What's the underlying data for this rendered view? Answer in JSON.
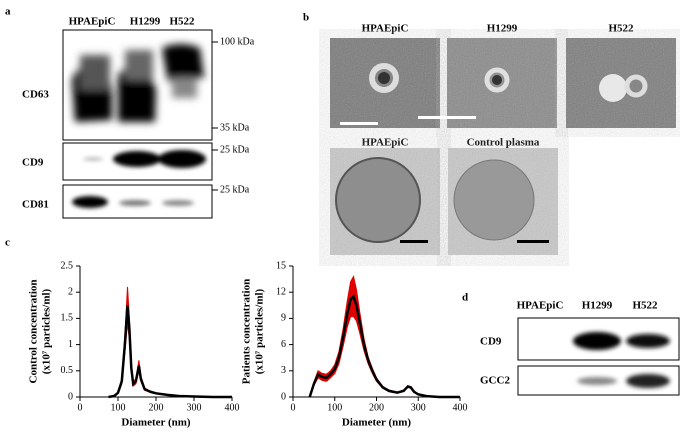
{
  "panel_a": {
    "label": "a",
    "lanes": [
      "HPAEpiC",
      "H1299",
      "H522"
    ],
    "blots": [
      {
        "name": "CD63",
        "markers": [
          "100 kDa",
          "35 kDa"
        ]
      },
      {
        "name": "CD9",
        "markers": [
          "25 kDa"
        ]
      },
      {
        "name": "CD81",
        "markers": [
          "25 kDa"
        ]
      }
    ]
  },
  "panel_b": {
    "label": "b",
    "images": [
      "HPAEpiC",
      "H1299",
      "H522",
      "HPAEpiC",
      "Control plasma"
    ]
  },
  "panel_c": {
    "label": "c"
  },
  "chart_data": [
    {
      "type": "line",
      "ylabel": [
        "Control concentration",
        "(x10⁷ particles/ml)"
      ],
      "xlabel": "Diameter (nm)",
      "xlim": [
        0,
        400
      ],
      "xticks": [
        0,
        100,
        200,
        300,
        400
      ],
      "ylim": [
        0,
        2.5
      ],
      "yticks": [
        0,
        0.5,
        1,
        1.5,
        2,
        2.5
      ],
      "x": [
        75,
        90,
        100,
        110,
        118,
        125,
        130,
        135,
        140,
        147,
        155,
        160,
        170,
        185,
        200,
        230,
        260,
        300,
        350,
        400
      ],
      "series": [
        {
          "color": "#000000",
          "band_color": "#e00000",
          "values": [
            0,
            0.02,
            0.08,
            0.3,
            1.0,
            1.75,
            1.3,
            0.55,
            0.25,
            0.3,
            0.6,
            0.35,
            0.15,
            0.1,
            0.07,
            0.04,
            0.02,
            0.01,
            0,
            0
          ],
          "error": [
            0,
            0,
            0.01,
            0.05,
            0.15,
            0.35,
            0.2,
            0.08,
            0.04,
            0.05,
            0.1,
            0.05,
            0.02,
            0.01,
            0.01,
            0,
            0,
            0,
            0,
            0
          ]
        }
      ]
    },
    {
      "type": "line",
      "ylabel": [
        "Patients concentration",
        "(x10⁷ particles/ml)"
      ],
      "xlabel": "Diameter (nm)",
      "xlim": [
        0,
        400
      ],
      "xticks": [
        0,
        100,
        200,
        300,
        400
      ],
      "ylim": [
        0,
        15
      ],
      "yticks": [
        0,
        3,
        6,
        9,
        12,
        15
      ],
      "x": [
        40,
        50,
        60,
        70,
        80,
        90,
        100,
        110,
        120,
        130,
        138,
        145,
        152,
        160,
        170,
        180,
        190,
        200,
        215,
        230,
        250,
        265,
        275,
        282,
        290,
        300,
        320,
        350,
        400
      ],
      "series": [
        {
          "color": "#000000",
          "band_color": "#e00000",
          "values": [
            0,
            1.5,
            2.6,
            2.3,
            2.2,
            2.6,
            3.2,
            4.5,
            6.8,
            9.5,
            11.2,
            11.5,
            10.5,
            8.5,
            6,
            4.2,
            3,
            2,
            1.1,
            0.7,
            0.5,
            0.7,
            1.2,
            1.1,
            0.6,
            0.3,
            0.1,
            0,
            0
          ],
          "error": [
            0,
            0.2,
            0.4,
            0.4,
            0.4,
            0.4,
            0.5,
            0.7,
            1,
            1.5,
            2,
            2.3,
            1.8,
            1.2,
            0.7,
            0.4,
            0.3,
            0.2,
            0.1,
            0.1,
            0.05,
            0.05,
            0.1,
            0.1,
            0.05,
            0,
            0,
            0,
            0
          ]
        }
      ]
    }
  ],
  "panel_d": {
    "label": "d",
    "lanes": [
      "HPAEpiC",
      "H1299",
      "H522"
    ],
    "blots": [
      "CD9",
      "GCC2"
    ]
  }
}
